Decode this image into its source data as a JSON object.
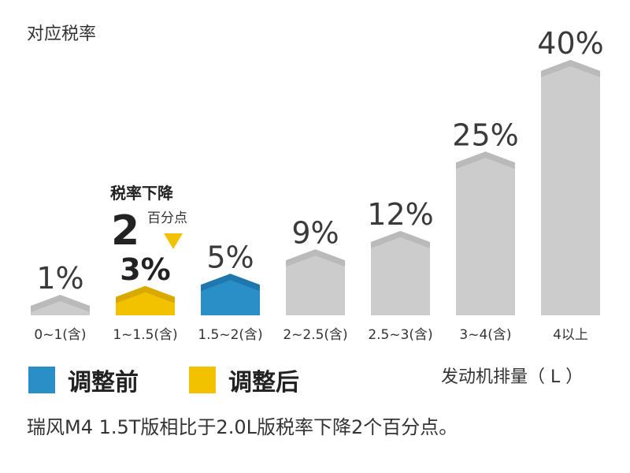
{
  "chart_data": {
    "type": "bar",
    "ylabel": "对应税率",
    "xlabel": "发动机排量（ L ）",
    "categories": [
      "0~1(含)",
      "1~1.5(含)",
      "1.5~2(含)",
      "2~2.5(含)",
      "2.5~3(含)",
      "3~4(含)",
      "4以上"
    ],
    "values": [
      1,
      3,
      5,
      9,
      12,
      25,
      40
    ],
    "value_labels": [
      "1%",
      "3%",
      "5%",
      "9%",
      "12%",
      "25%",
      "40%"
    ],
    "ylim": [
      0,
      40
    ],
    "grid": false,
    "highlight": {
      "before_index": 2,
      "after_index": 1
    },
    "legend": {
      "position": "bottom-left",
      "items": [
        {
          "label": "调整前",
          "color": "#2a8fc7"
        },
        {
          "label": "调整后",
          "color": "#f2c200"
        }
      ]
    },
    "annotation": {
      "title": "税率下降",
      "number": "2",
      "unit": "百分点"
    },
    "colors": {
      "default": "#cccccc",
      "default_cap": "#bababa",
      "before": "#2a8fc7",
      "before_cap": "#1f77ad",
      "after": "#f2c200",
      "after_cap": "#d9a900",
      "arrow": "#f2c200"
    }
  },
  "caption": "瑞风M4 1.5T版相比于2.0L版税率下降2个百分点。"
}
